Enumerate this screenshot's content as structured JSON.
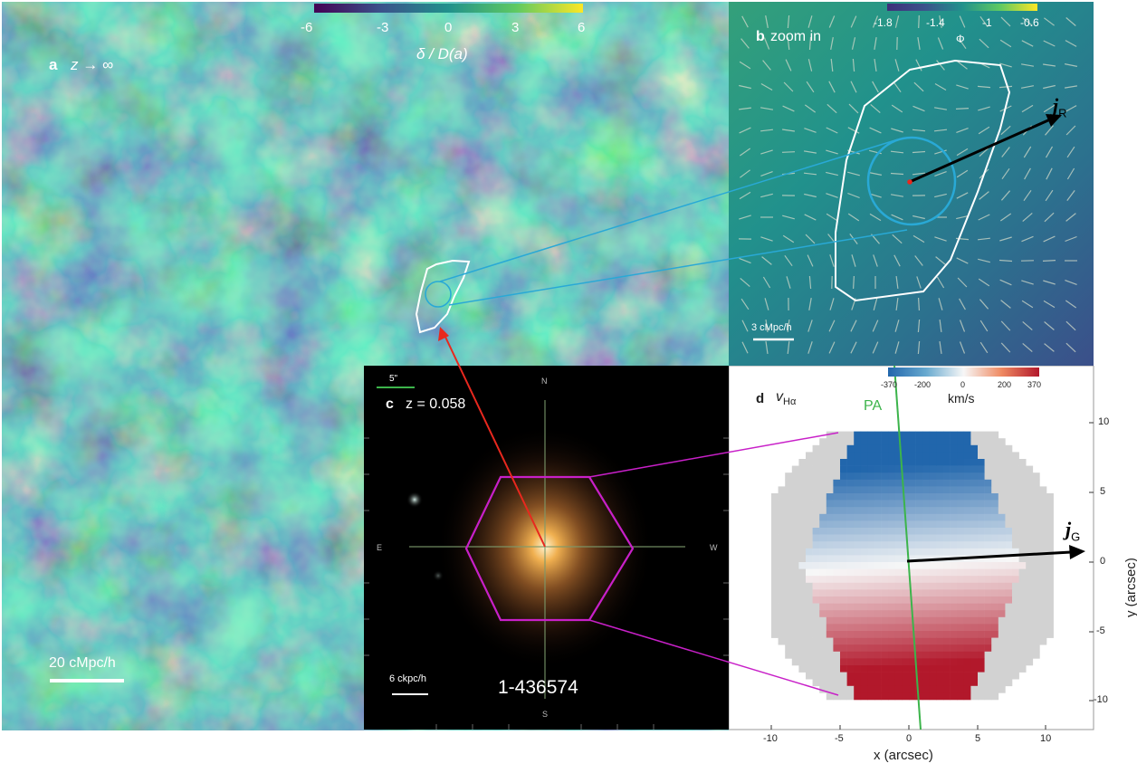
{
  "panel_a": {
    "letter": "a",
    "redshift_label": "z → ∞",
    "colorbar_ticks": [
      "-6",
      "-3",
      "0",
      "3",
      "6"
    ],
    "colorbar_label": "δ / D(a)",
    "scalebar_label": "20 cMpc/h"
  },
  "panel_b": {
    "letter": "b",
    "title": "zoom in",
    "colorbar_ticks": [
      "-1.8",
      "-1.4",
      "-1",
      "-0.6"
    ],
    "colorbar_label": "Φ",
    "vector_label": "j",
    "vector_sub": "R",
    "scalebar_label": "3 cMpc/h"
  },
  "panel_c": {
    "letter": "c",
    "redshift": "z = 0.058",
    "scale_top": "5\"",
    "scale_bottom": "6 ckpc/h",
    "galaxy_id": "1-436574",
    "compass": {
      "n": "N",
      "s": "S",
      "e": "E",
      "w": "W"
    }
  },
  "panel_d": {
    "letter": "d",
    "quantity": "v",
    "quantity_sub": "Hα",
    "pa_label": "PA",
    "colorbar_ticks": [
      "-370",
      "-200",
      "0",
      "200",
      "370"
    ],
    "colorbar_unit": "km/s",
    "vector_label": "j",
    "vector_sub": "G",
    "x_axis_label": "x (arcsec)",
    "y_axis_label": "y (arcsec)",
    "x_ticks": [
      "-10",
      "-5",
      "0",
      "5",
      "10"
    ],
    "y_ticks": [
      "10",
      "5",
      "0",
      "-5",
      "-10"
    ]
  },
  "colors": {
    "overdensity_cmap": [
      "#440154",
      "#3b528b",
      "#21918c",
      "#5ec962",
      "#fde725"
    ],
    "velocity_cmap": [
      "#2166ac",
      "#f7f7f7",
      "#b2182b"
    ],
    "link_line": "#29a9d6",
    "hexagon": "#c820c8",
    "pointer_arrow": "#e8281e",
    "pa_line": "#3cb44b"
  }
}
